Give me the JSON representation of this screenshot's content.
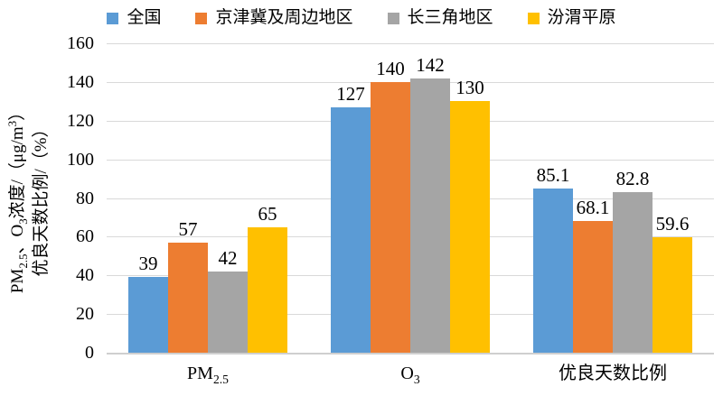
{
  "chart_data": {
    "type": "bar",
    "title": "",
    "categories": [
      "PM_{2.5}",
      "O_{3}",
      "优良天数比例"
    ],
    "series": [
      {
        "name": "全国",
        "color": "#5B9BD5",
        "values": [
          39,
          127,
          85.1
        ]
      },
      {
        "name": "京津冀及周边地区",
        "color": "#ED7D31",
        "values": [
          57,
          140,
          68.1
        ]
      },
      {
        "name": "长三角地区",
        "color": "#A5A5A5",
        "values": [
          42,
          142,
          82.8
        ]
      },
      {
        "name": "汾渭平原",
        "color": "#FFC000",
        "values": [
          65,
          130,
          59.6
        ]
      }
    ],
    "ylabel_line1": "PM_{2.5}、O_{3}浓度/（μg/m^{3}）",
    "ylabel_line2": "优良天数比例/（%）",
    "ylim": [
      0,
      160
    ],
    "ytick_step": 20,
    "yticks": [
      0,
      20,
      40,
      60,
      80,
      100,
      120,
      140,
      160
    ],
    "grid": "horizontal",
    "legend_position": "top",
    "data_labels": true
  },
  "colors": {
    "gridline": "#D9D9D9",
    "axis_line": "#CFCFCF",
    "text": "#000000",
    "background": "#FFFFFF"
  }
}
